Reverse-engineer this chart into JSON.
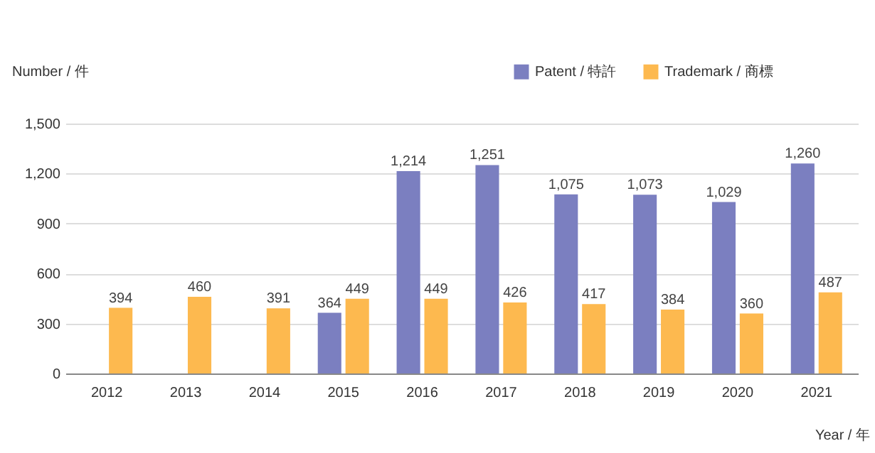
{
  "chart_data": {
    "type": "bar",
    "xlabel": "Year / 年",
    "ylabel": "Number / 件",
    "categories": [
      "2012",
      "2013",
      "2014",
      "2015",
      "2016",
      "2017",
      "2018",
      "2019",
      "2020",
      "2021"
    ],
    "series": [
      {
        "name": "Patent / 特許",
        "color": "#7b7fc0",
        "values": [
          null,
          null,
          null,
          364,
          1214,
          1251,
          1075,
          1073,
          1029,
          1260
        ],
        "value_labels": [
          null,
          null,
          null,
          "364",
          "1,214",
          "1,251",
          "1,075",
          "1,073",
          "1,029",
          "1,260"
        ]
      },
      {
        "name": "Trademark / 商標",
        "color": "#fdb94f",
        "values": [
          394,
          460,
          391,
          449,
          449,
          426,
          417,
          384,
          360,
          487
        ],
        "value_labels": [
          "394",
          "460",
          "391",
          "449",
          "449",
          "426",
          "417",
          "384",
          "360",
          "487"
        ]
      }
    ],
    "ylim": [
      0,
      1500
    ],
    "yticks": [
      0,
      300,
      600,
      900,
      {
        "value": 1200,
        "label": "1,200"
      },
      {
        "value": 1500,
        "label": "1,500"
      }
    ],
    "grid": "y",
    "legend": "top right"
  }
}
